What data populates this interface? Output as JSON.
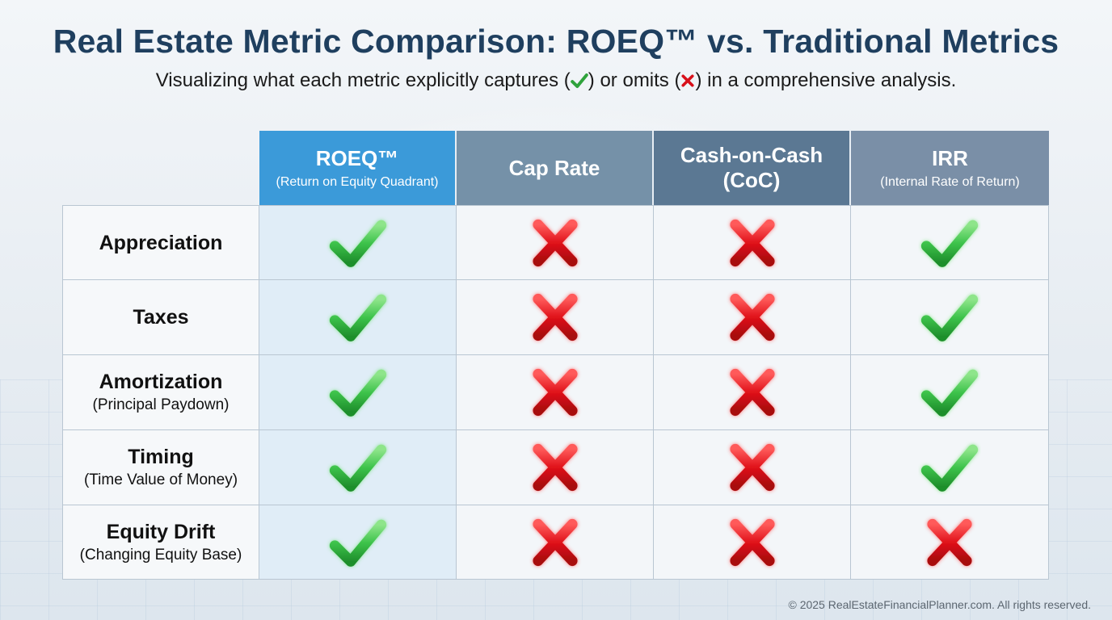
{
  "header": {
    "title": "Real Estate Metric Comparison: ROEQ™ vs. Traditional Metrics",
    "subtitle_before": "Visualizing what each metric explicitly captures (",
    "subtitle_middle": ") or omits (",
    "subtitle_after": ") in a comprehensive analysis."
  },
  "columns": [
    {
      "name": "ROEQ™",
      "sub": "(Return on Equity Quadrant)",
      "color": "#3b9ad9"
    },
    {
      "name": "Cap Rate",
      "sub": "",
      "color": "#7591a8"
    },
    {
      "name": "Cash-on-Cash",
      "name2": "(CoC)",
      "sub": "",
      "color": "#5b7893"
    },
    {
      "name": "IRR",
      "sub": "(Internal Rate of Return)",
      "color": "#7a8fa7"
    }
  ],
  "rows": [
    {
      "label": "Appreciation",
      "sub": "",
      "values": [
        true,
        false,
        false,
        true
      ]
    },
    {
      "label": "Taxes",
      "sub": "",
      "values": [
        true,
        false,
        false,
        true
      ]
    },
    {
      "label": "Amortization",
      "sub": "(Principal Paydown)",
      "values": [
        true,
        false,
        false,
        true
      ]
    },
    {
      "label": "Timing",
      "sub": "(Time Value of Money)",
      "values": [
        true,
        false,
        false,
        true
      ]
    },
    {
      "label": "Equity Drift",
      "sub": "(Changing Equity Base)",
      "values": [
        true,
        false,
        false,
        false
      ]
    }
  ],
  "icons": {
    "captured": "check-icon",
    "omitted": "cross-icon"
  },
  "colors": {
    "check": "#3cc24a",
    "cross": "#e0121a",
    "title": "#1f3f5f"
  },
  "footer": {
    "copyright": "© 2025 RealEstateFinancialPlanner.com. All rights reserved."
  }
}
